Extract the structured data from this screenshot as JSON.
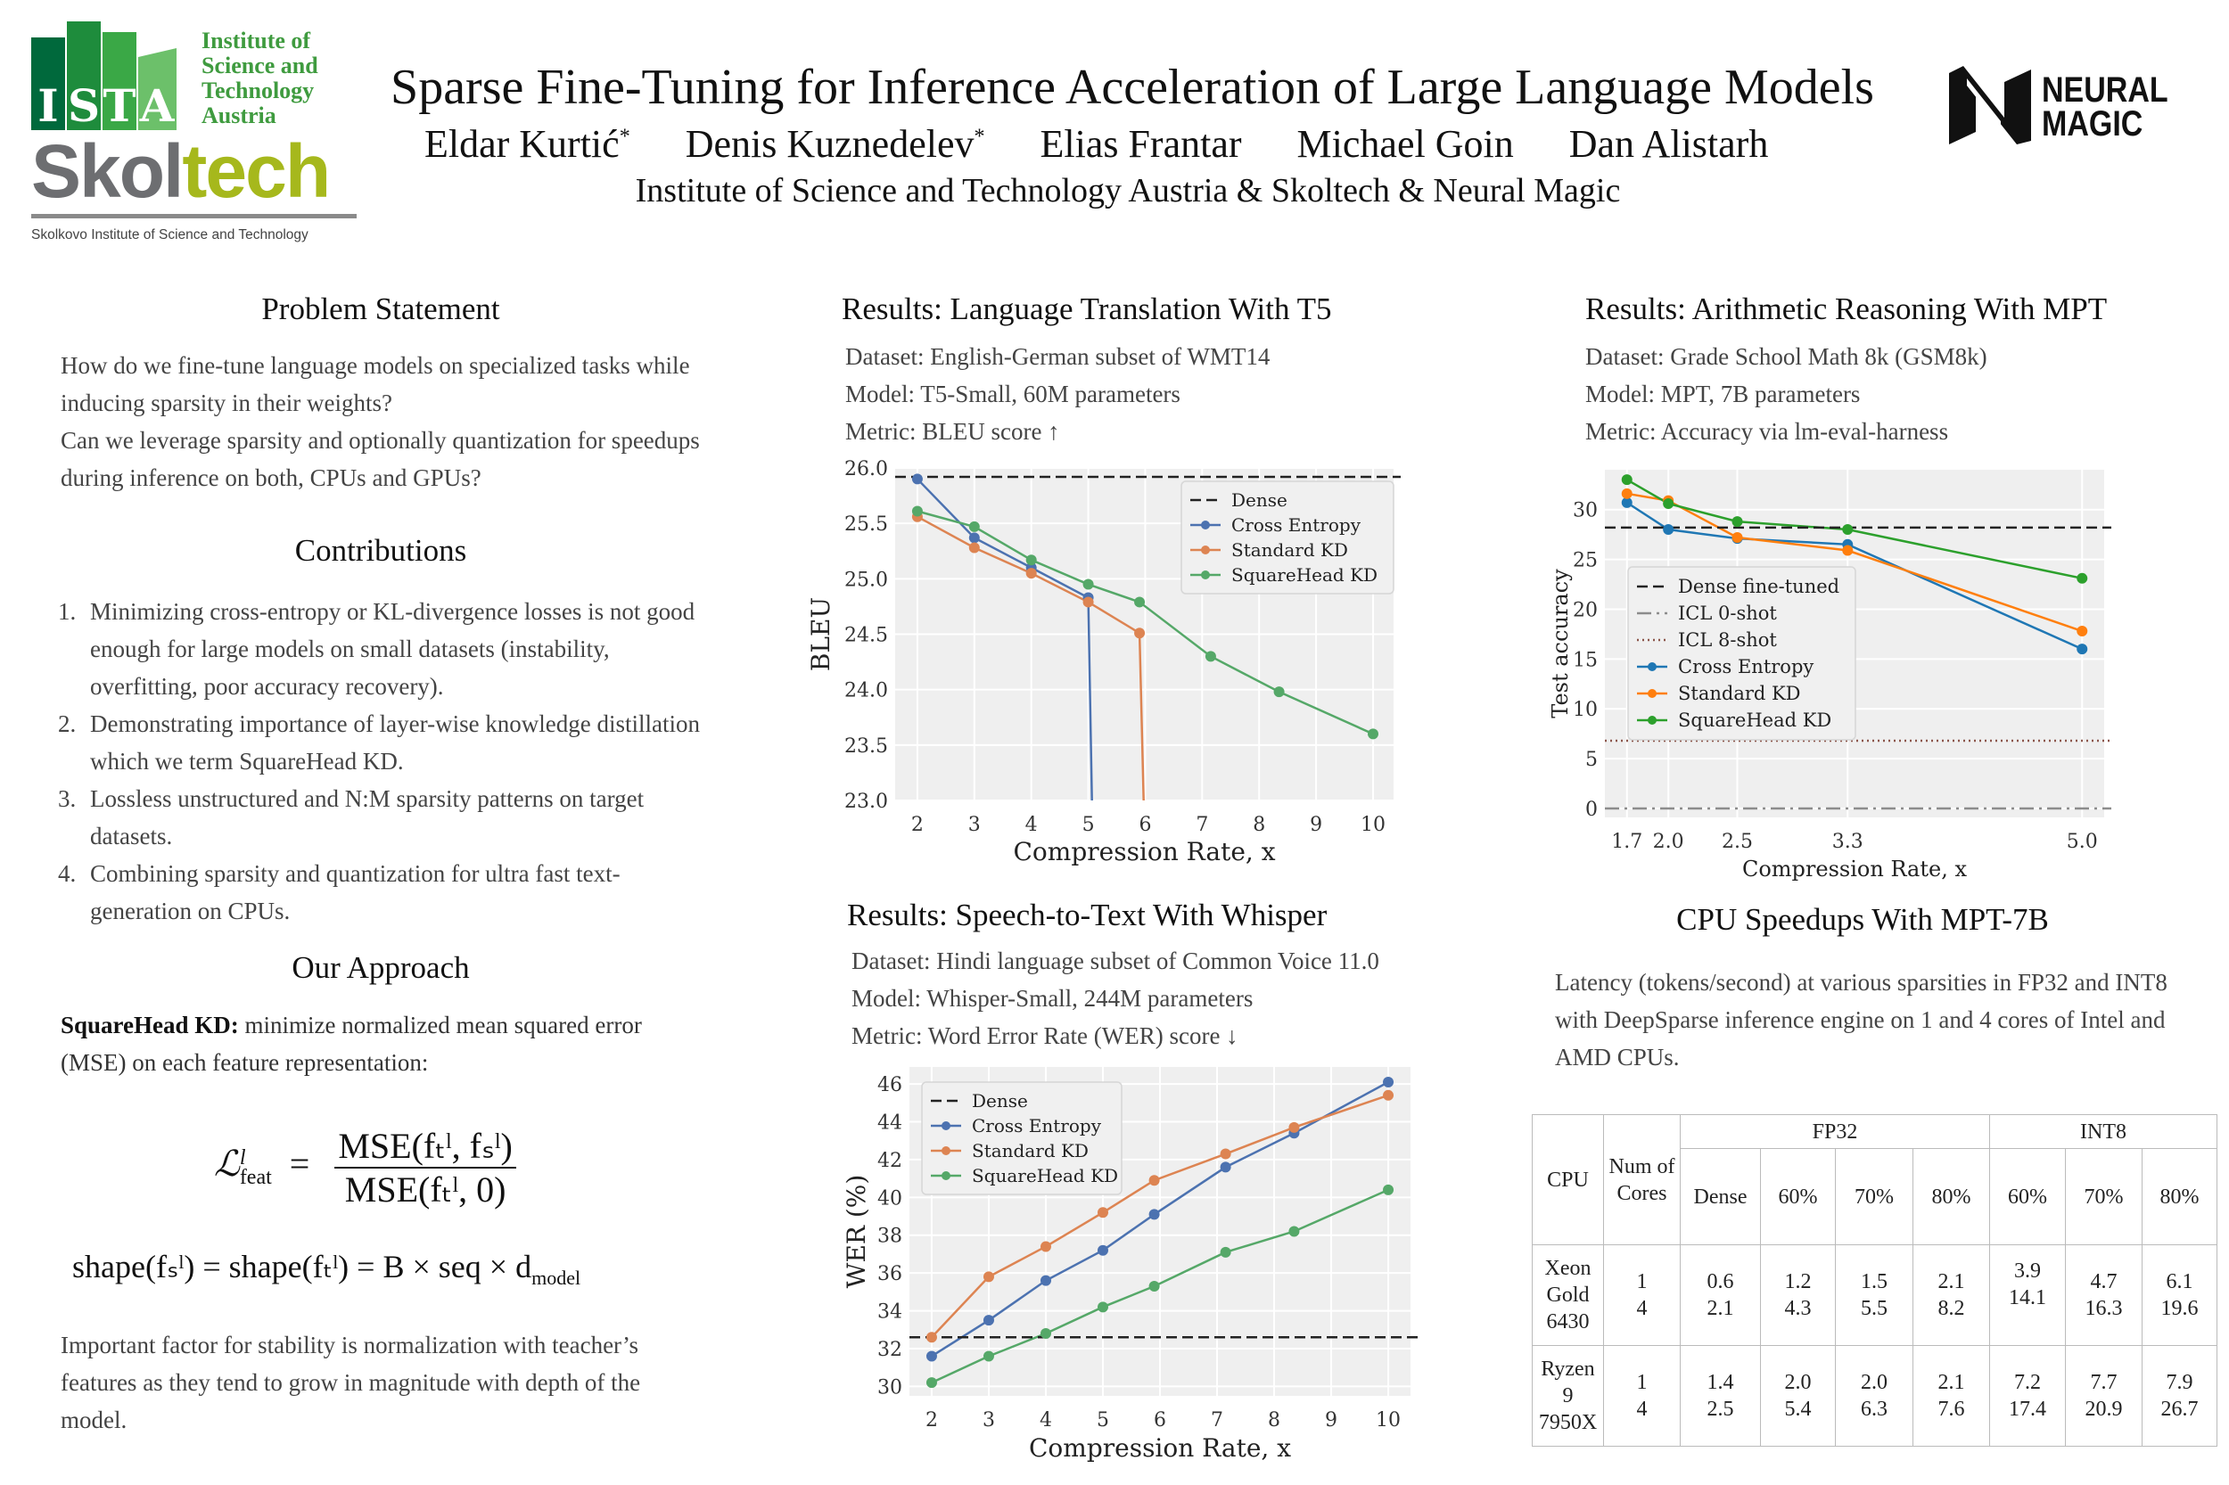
{
  "header": {
    "title": "Sparse Fine-Tuning for Inference Acceleration of Large Language Models",
    "authors": [
      {
        "name": "Eldar Kurtić",
        "mark": "*"
      },
      {
        "name": "Denis Kuznedelev",
        "mark": "*"
      },
      {
        "name": "Elias Frantar",
        "mark": ""
      },
      {
        "name": "Michael Goin",
        "mark": ""
      },
      {
        "name": "Dan Alistarh",
        "mark": ""
      }
    ],
    "affiliation": "Institute of Science and Technology Austria & Skoltech & Neural Magic",
    "logos": {
      "ista": {
        "letters": [
          "I",
          "S",
          "T",
          "A"
        ],
        "text": [
          "Institute of",
          "Science and",
          "Technology",
          "Austria"
        ]
      },
      "skoltech": {
        "part1": "Skol",
        "part2": "tech",
        "tagline": "Skolkovo Institute of Science and Technology"
      },
      "neural_magic": {
        "line1": "NEURAL",
        "line2": "MAGIC"
      }
    }
  },
  "problem": {
    "heading": "Problem Statement",
    "paragraphs": [
      "How do we fine-tune language models on specialized tasks while inducing sparsity in their weights?",
      "Can we leverage sparsity and optionally quantization for speedups during inference on both, CPUs and GPUs?"
    ]
  },
  "contributions": {
    "heading": "Contributions",
    "items": [
      {
        "num": "1.",
        "text": "Minimizing cross-entropy or KL-divergence losses is not good enough for large models on small datasets (instability, overfitting, poor accuracy recovery)."
      },
      {
        "num": "2.",
        "text": "Demonstrating importance of layer-wise knowledge distillation which we term SquareHead KD."
      },
      {
        "num": "3.",
        "text": "Lossless unstructured and N:M sparsity patterns on target datasets."
      },
      {
        "num": "4.",
        "text": "Combining sparsity and quantization for ultra fast text-generation on CPUs."
      }
    ]
  },
  "approach": {
    "heading": "Our Approach",
    "lead_bold": "SquareHead KD:",
    "lead_text": " minimize normalized mean squared error (MSE) on each feature representation:",
    "formula": {
      "lhs": "ℒ",
      "lhs_sup": "l",
      "lhs_sub": "feat",
      "equals": "=",
      "numerator": "MSE(fₜˡ, fₛˡ)",
      "denominator": "MSE(fₜˡ, 0)"
    },
    "shape_formula": {
      "text": "shape(fₛˡ) = shape(fₜˡ) = B × seq × d",
      "sub": "model"
    },
    "closing": "Important factor for stability is normalization with teacher’s features as they tend to grow in magnitude with depth of the model."
  },
  "t5": {
    "heading": "Results: Language Translation With T5",
    "lines": [
      "Dataset: English-German subset of WMT14",
      "Model: T5-Small, 60M parameters",
      "Metric: BLEU score ↑"
    ]
  },
  "whisper": {
    "heading": "Results: Speech-to-Text With Whisper",
    "lines": [
      "Dataset: Hindi language subset of Common Voice 11.0",
      "Model: Whisper-Small, 244M parameters",
      "Metric: Word Error Rate (WER) score ↓"
    ]
  },
  "mpt": {
    "heading": "Results: Arithmetic Reasoning With MPT",
    "lines": [
      "Dataset: Grade School Math 8k (GSM8k)",
      "Model: MPT, 7B parameters",
      "Metric: Accuracy via lm-eval-harness"
    ]
  },
  "cpu": {
    "heading": "CPU Speedups With MPT-7B",
    "description": "Latency (tokens/second) at various sparsities in FP32 and INT8 with DeepSparse inference engine on 1 and 4 cores of Intel and AMD CPUs.",
    "table": {
      "col_cpu": "CPU",
      "col_cores": "Num of Cores",
      "group_fp32": "FP32",
      "group_int8": "INT8",
      "fp32_cols": [
        "Dense",
        "60%",
        "70%",
        "80%"
      ],
      "int8_cols": [
        "60%",
        "70%",
        "80%"
      ],
      "rows": [
        {
          "cpu": "Xeon Gold 6430",
          "cores": "1 4",
          "values": [
            "0.6 2.1",
            "1.2 4.3",
            "1.5 5.5",
            "2.1 8.2",
            "3.9 14.1",
            "4.7 16.3",
            "6.1 19.6"
          ]
        },
        {
          "cpu": "Ryzen 9 7950X",
          "cores": "1 4",
          "values": [
            "1.4 2.5",
            "2.0 5.4",
            "2.0 6.3",
            "2.1 7.6",
            "7.2 17.4",
            "7.7 20.9",
            "7.9 26.7"
          ]
        }
      ]
    }
  },
  "chart_data": [
    {
      "id": "t5",
      "type": "line",
      "xlabel": "Compression Rate, x",
      "ylabel": "BLEU",
      "xlim": [
        1.61,
        10.36
      ],
      "ylim": [
        23.0,
        26.0
      ],
      "xticks": [
        2,
        3,
        4,
        5,
        6,
        7,
        8,
        9,
        10
      ],
      "xtick_labels": [
        "2",
        "3",
        "4",
        "5",
        "6",
        "7",
        "8",
        "9",
        "10"
      ],
      "yticks": [
        23.0,
        23.5,
        24.0,
        24.5,
        25.0,
        25.5,
        26.0
      ],
      "ytick_labels": [
        "23.0",
        "23.5",
        "24.0",
        "24.5",
        "25.0",
        "25.5",
        "26.0"
      ],
      "grid": true,
      "legend": "top-right",
      "reference_lines": [
        {
          "name": "Dense",
          "y": 25.92,
          "style": "dashed",
          "color": "#222222"
        }
      ],
      "series": [
        {
          "name": "Cross Entropy",
          "color": "#4c72b0",
          "x": [
            2,
            3,
            4,
            5
          ],
          "y": [
            25.9,
            25.37,
            25.1,
            24.83
          ],
          "falls_below_axis_at": 5.07
        },
        {
          "name": "Standard KD",
          "color": "#dd8452",
          "x": [
            2,
            3,
            4,
            5,
            5.9
          ],
          "y": [
            25.56,
            25.28,
            25.05,
            24.79,
            24.51
          ],
          "falls_below_axis_at": 5.98
        },
        {
          "name": "SquareHead KD",
          "color": "#55a868",
          "x": [
            2,
            3,
            4,
            5,
            5.9,
            7.15,
            8.35,
            10
          ],
          "y": [
            25.61,
            25.47,
            25.17,
            24.95,
            24.79,
            24.3,
            23.98,
            23.6
          ]
        }
      ]
    },
    {
      "id": "mpt",
      "type": "line",
      "xlabel": "Compression Rate, x",
      "ylabel": "Test accuracy",
      "xlim": [
        1.54,
        5.16
      ],
      "ylim": [
        -0.9,
        34.0
      ],
      "xticks": [
        1.7,
        2.0,
        2.5,
        3.3,
        5.0
      ],
      "xtick_labels": [
        "1.7",
        "2.0",
        "2.5",
        "3.3",
        "5.0"
      ],
      "yticks": [
        0,
        5,
        10,
        15,
        20,
        25,
        30
      ],
      "ytick_labels": [
        "0",
        "5",
        "10",
        "15",
        "20",
        "25",
        "30"
      ],
      "grid": true,
      "legend": "center-left",
      "reference_lines": [
        {
          "name": "Dense fine-tuned",
          "y": 28.2,
          "style": "dashed",
          "color": "#222222"
        },
        {
          "name": "ICL 0-shot",
          "y": 0.0,
          "style": "dashdot",
          "color": "#8c8c8c"
        },
        {
          "name": "ICL 8-shot",
          "y": 6.8,
          "style": "dotted",
          "color": "#8c564b"
        }
      ],
      "series": [
        {
          "name": "Cross Entropy",
          "color": "#1f77b4",
          "x": [
            1.7,
            2.0,
            2.5,
            3.3,
            5.0
          ],
          "y": [
            30.7,
            28.0,
            27.1,
            26.5,
            16.0
          ]
        },
        {
          "name": "Standard KD",
          "color": "#ff7f0e",
          "x": [
            1.7,
            2.0,
            2.5,
            3.3,
            5.0
          ],
          "y": [
            31.6,
            30.9,
            27.2,
            25.9,
            17.8
          ]
        },
        {
          "name": "SquareHead KD",
          "color": "#2ca02c",
          "x": [
            1.7,
            2.0,
            2.5,
            3.3,
            5.0
          ],
          "y": [
            33.0,
            30.6,
            28.8,
            28.0,
            23.1
          ]
        }
      ]
    },
    {
      "id": "whisper",
      "type": "line",
      "xlabel": "Compression Rate, x",
      "ylabel": "WER (%)",
      "xlim": [
        1.61,
        10.39
      ],
      "ylim": [
        29.5,
        46.9
      ],
      "xticks": [
        2,
        3,
        4,
        5,
        6,
        7,
        8,
        9,
        10
      ],
      "xtick_labels": [
        "2",
        "3",
        "4",
        "5",
        "6",
        "7",
        "8",
        "9",
        "10"
      ],
      "yticks": [
        30,
        32,
        34,
        36,
        38,
        40,
        42,
        44,
        46
      ],
      "ytick_labels": [
        "30",
        "32",
        "34",
        "36",
        "38",
        "40",
        "42",
        "44",
        "46"
      ],
      "grid": true,
      "legend": "top-left",
      "reference_lines": [
        {
          "name": "Dense",
          "y": 32.6,
          "style": "dashed",
          "color": "#222222"
        }
      ],
      "series": [
        {
          "name": "Cross Entropy",
          "color": "#4c72b0",
          "x": [
            2,
            3,
            4,
            5,
            5.9,
            7.15,
            8.35,
            10
          ],
          "y": [
            31.6,
            33.5,
            35.6,
            37.2,
            39.1,
            41.6,
            43.4,
            46.1
          ]
        },
        {
          "name": "Standard KD",
          "color": "#dd8452",
          "x": [
            2,
            3,
            4,
            5,
            5.9,
            7.15,
            8.35,
            10
          ],
          "y": [
            32.6,
            35.8,
            37.4,
            39.2,
            40.9,
            42.3,
            43.7,
            45.4
          ]
        },
        {
          "name": "SquareHead KD",
          "color": "#55a868",
          "x": [
            2,
            3,
            4,
            5,
            5.9,
            7.15,
            8.35,
            10
          ],
          "y": [
            30.2,
            31.6,
            32.8,
            34.2,
            35.3,
            37.1,
            38.2,
            40.4
          ]
        }
      ]
    }
  ]
}
